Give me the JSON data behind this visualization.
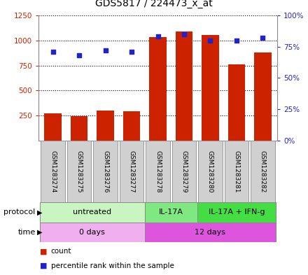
{
  "title": "GDS5817 / 224473_x_at",
  "samples": [
    "GSM1283274",
    "GSM1283275",
    "GSM1283276",
    "GSM1283277",
    "GSM1283278",
    "GSM1283279",
    "GSM1283280",
    "GSM1283281",
    "GSM1283282"
  ],
  "counts": [
    270,
    245,
    300,
    290,
    1030,
    1090,
    1055,
    760,
    880
  ],
  "percentile_ranks": [
    71,
    68,
    72,
    71,
    83,
    85,
    80,
    80,
    82
  ],
  "protocol_groups": [
    {
      "label": "untreated",
      "start": 0,
      "end": 4,
      "color": "#c8f5c0"
    },
    {
      "label": "IL-17A",
      "start": 4,
      "end": 6,
      "color": "#80e880"
    },
    {
      "label": "IL-17A + IFN-g",
      "start": 6,
      "end": 9,
      "color": "#44dd44"
    }
  ],
  "time_groups": [
    {
      "label": "0 days",
      "start": 0,
      "end": 4,
      "color": "#f0b0f0"
    },
    {
      "label": "12 days",
      "start": 4,
      "end": 9,
      "color": "#dd55dd"
    }
  ],
  "ylim_left": [
    0,
    1250
  ],
  "ylim_right": [
    0,
    100
  ],
  "yticks_left": [
    250,
    500,
    750,
    1000,
    1250
  ],
  "yticks_right": [
    0,
    25,
    50,
    75,
    100
  ],
  "bar_color": "#cc2200",
  "dot_color": "#2222cc",
  "grid_color": "#000000",
  "sample_box_color": "#d0d0d0",
  "sample_box_border": "#999999",
  "left_axis_color": "#cc2200",
  "right_axis_color": "#2222cc",
  "title_fontsize": 10,
  "tick_fontsize": 7.5,
  "sample_fontsize": 6.5,
  "annot_fontsize": 8,
  "legend_fontsize": 7.5
}
